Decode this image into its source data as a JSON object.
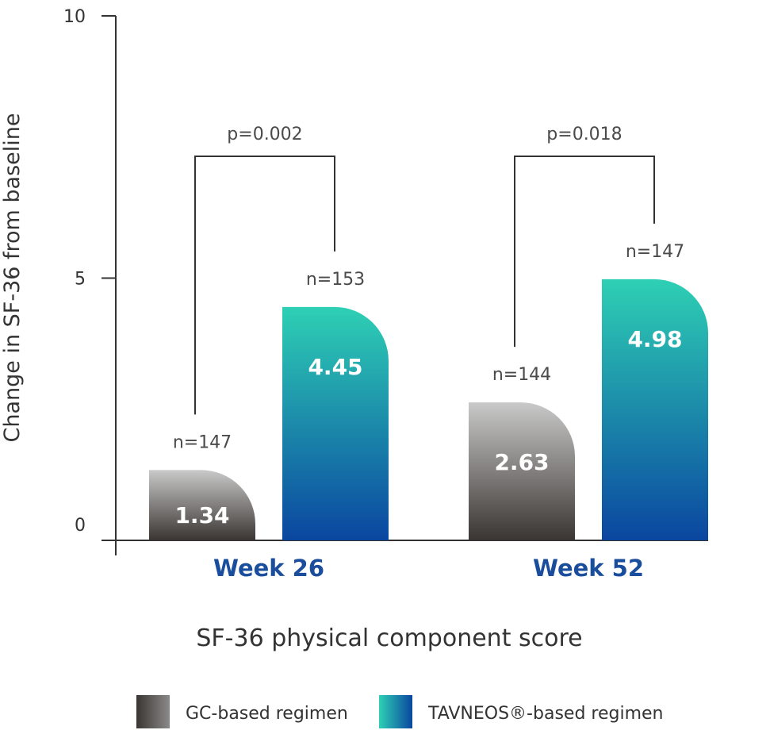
{
  "chart_data": {
    "type": "bar",
    "categories": [
      "Week 26",
      "Week 52"
    ],
    "series": [
      {
        "name": "GC-based regimen",
        "values": [
          1.34,
          2.63
        ],
        "n_labels": [
          "n=147",
          "n=144"
        ],
        "value_labels": [
          "1.34",
          "2.63"
        ]
      },
      {
        "name": "TAVNEOS®-based regimen",
        "values": [
          4.45,
          4.98
        ],
        "n_labels": [
          "n=153",
          "n=147"
        ],
        "value_labels": [
          "4.45",
          "4.98"
        ]
      }
    ],
    "p_values": [
      "p=0.002",
      "p=0.018"
    ],
    "ylabel": "Change in SF-36 from baseline",
    "xlabel": "SF-36 physical component score",
    "ylim": [
      0,
      10
    ],
    "yticks": [
      "0",
      "5",
      "10"
    ],
    "legend_placement": "bottom"
  },
  "colors": {
    "gc_top": "#c9c9c9",
    "gc_bottom": "#3a3532",
    "tav_top": "#2ed0b4",
    "tav_bottom": "#0a46a0",
    "category": "#1a4e9c",
    "axis": "#333333"
  }
}
